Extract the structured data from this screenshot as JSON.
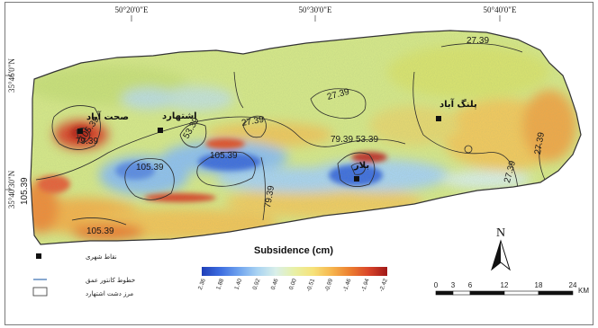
{
  "coordinates": {
    "top": [
      "50°20'0\"E",
      "50°30'0\"E",
      "50°40'0\"E"
    ],
    "left": [
      "35°46'0\"N",
      "35°40'30\"N"
    ]
  },
  "colorbar": {
    "title": "Subsidence (cm)",
    "ticks": [
      "2.36",
      "1.88",
      "1.40",
      "0.92",
      "0.46",
      "0.00",
      "-0.51",
      "-0.99",
      "-1.46",
      "-1.94",
      "-2.42"
    ],
    "colors": [
      "#1f3fb8",
      "#3d6de0",
      "#6fa3ee",
      "#a9d3f2",
      "#d9efe9",
      "#e8f0a6",
      "#f6e27a",
      "#f6b64e",
      "#ec7e30",
      "#d9452a",
      "#a01818"
    ]
  },
  "contours": [
    "27.39",
    "27.39",
    "27.39",
    "53.39",
    "53.39",
    "79.39",
    "105.39",
    "105.39",
    "105.39",
    "79.39",
    "27.39",
    "105.39",
    "27.39",
    "79.39",
    "105.39"
  ],
  "cities": [
    "صحت آباد",
    "اشتهارد",
    "پلنگ آباد",
    "بلار"
  ],
  "legend": {
    "city_points": "نقاط شهری",
    "contour_lines": "خطوط کانتور عمق",
    "plain_boundary": "مرز دشت اشتهارد"
  },
  "north_label": "N",
  "scale_bar": {
    "ticks": [
      "0",
      "3",
      "6",
      "12",
      "18",
      "24"
    ],
    "unit": "KM"
  }
}
